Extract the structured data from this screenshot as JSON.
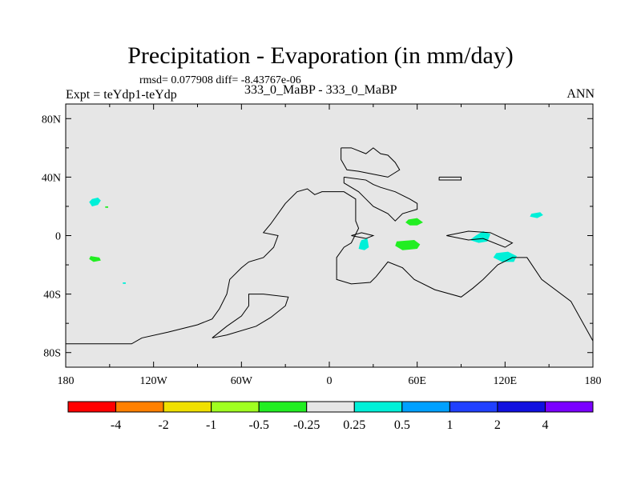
{
  "chart_data": {
    "type": "contour-map",
    "title": "Precipitation - Evaporation (in mm/day)",
    "stats": "rmsd= 0.077908 diff= -8.43767e-06",
    "left_label": "Expt = teYdp1-teYdp",
    "center_label": "333_0_MaBP - 333_0_MaBP",
    "right_label": "ANN",
    "xlim": [
      -180,
      180
    ],
    "ylim": [
      -90,
      90
    ],
    "x_ticks": [
      {
        "value": -180,
        "label": "180"
      },
      {
        "value": -120,
        "label": "120W"
      },
      {
        "value": -60,
        "label": "60W"
      },
      {
        "value": 0,
        "label": "0"
      },
      {
        "value": 60,
        "label": "60E"
      },
      {
        "value": 120,
        "label": "120E"
      },
      {
        "value": 180,
        "label": "180"
      }
    ],
    "y_ticks": [
      {
        "value": 80,
        "label": "80N"
      },
      {
        "value": 40,
        "label": "40N"
      },
      {
        "value": 0,
        "label": "0"
      },
      {
        "value": -40,
        "label": "40S"
      },
      {
        "value": -80,
        "label": "80S"
      }
    ],
    "background_color": "#e6e6e6",
    "coastline": [
      [
        [
          -180,
          -74
        ],
        [
          -135,
          -74
        ],
        [
          -128,
          -70
        ],
        [
          -110,
          -66
        ],
        [
          -90,
          -61
        ],
        [
          -80,
          -57
        ],
        [
          -75,
          -50
        ],
        [
          -70,
          -40
        ],
        [
          -68,
          -30
        ],
        [
          -60,
          -22
        ],
        [
          -55,
          -18
        ],
        [
          -45,
          -15
        ],
        [
          -38,
          -8
        ],
        [
          -35,
          0
        ],
        [
          -45,
          2
        ],
        [
          -40,
          8
        ],
        [
          -30,
          22
        ],
        [
          -22,
          30
        ],
        [
          -15,
          32
        ],
        [
          -10,
          28
        ],
        [
          -5,
          30
        ],
        [
          10,
          30
        ],
        [
          18,
          25
        ],
        [
          18,
          10
        ],
        [
          20,
          5
        ],
        [
          15,
          -5
        ],
        [
          10,
          -8
        ],
        [
          5,
          -15
        ],
        [
          5,
          -30
        ],
        [
          15,
          -33
        ],
        [
          28,
          -32
        ],
        [
          32,
          -28
        ],
        [
          40,
          -18
        ],
        [
          50,
          -22
        ],
        [
          58,
          -30
        ],
        [
          72,
          -37
        ],
        [
          90,
          -42
        ],
        [
          98,
          -36
        ],
        [
          105,
          -30
        ],
        [
          115,
          -20
        ],
        [
          125,
          -15
        ],
        [
          135,
          -15
        ],
        [
          145,
          -30
        ],
        [
          165,
          -45
        ],
        [
          180,
          -72
        ]
      ],
      [
        [
          -80,
          -70
        ],
        [
          -70,
          -68
        ],
        [
          -50,
          -62
        ],
        [
          -40,
          -56
        ],
        [
          -30,
          -48
        ],
        [
          -28,
          -42
        ],
        [
          -45,
          -40
        ],
        [
          -55,
          -40
        ],
        [
          -55,
          -48
        ],
        [
          -60,
          -55
        ],
        [
          -70,
          -62
        ],
        [
          -80,
          -70
        ]
      ],
      [
        [
          10,
          40
        ],
        [
          25,
          38
        ],
        [
          30,
          35
        ],
        [
          35,
          33
        ],
        [
          45,
          30
        ],
        [
          55,
          25
        ],
        [
          60,
          22
        ],
        [
          60,
          18
        ],
        [
          50,
          15
        ],
        [
          45,
          10
        ],
        [
          40,
          15
        ],
        [
          30,
          20
        ],
        [
          25,
          25
        ],
        [
          20,
          30
        ],
        [
          10,
          36
        ],
        [
          10,
          40
        ]
      ],
      [
        [
          8,
          60
        ],
        [
          15,
          60
        ],
        [
          25,
          56
        ],
        [
          30,
          60
        ],
        [
          35,
          56
        ],
        [
          40,
          55
        ],
        [
          45,
          50
        ],
        [
          48,
          45
        ],
        [
          40,
          40
        ],
        [
          30,
          42
        ],
        [
          20,
          44
        ],
        [
          12,
          45
        ],
        [
          8,
          52
        ],
        [
          8,
          60
        ]
      ],
      [
        [
          75,
          40
        ],
        [
          90,
          40
        ],
        [
          90,
          38
        ],
        [
          75,
          38
        ],
        [
          75,
          40
        ]
      ],
      [
        [
          15,
          0
        ],
        [
          25,
          -2
        ],
        [
          30,
          0
        ],
        [
          22,
          2
        ],
        [
          15,
          0
        ]
      ],
      [
        [
          80,
          0
        ],
        [
          95,
          -3
        ],
        [
          105,
          -2
        ],
        [
          120,
          -8
        ],
        [
          125,
          -5
        ],
        [
          110,
          2
        ],
        [
          95,
          3
        ],
        [
          80,
          0
        ]
      ]
    ],
    "shaded_regions": [
      {
        "level": "0.25 to 0.5",
        "color": "#00f0d8",
        "points": [
          [
            -162,
            25
          ],
          [
            -158,
            26
          ],
          [
            -156,
            24
          ],
          [
            -158,
            21
          ],
          [
            -162,
            20
          ],
          [
            -164,
            23
          ]
        ]
      },
      {
        "level": "0.25 to 0.5",
        "color": "#00f0d8",
        "points": [
          [
            100,
            0
          ],
          [
            105,
            3
          ],
          [
            110,
            1
          ],
          [
            108,
            -4
          ],
          [
            102,
            -5
          ],
          [
            96,
            -3
          ]
        ]
      },
      {
        "level": "0.25 to 0.5",
        "color": "#00f0d8",
        "points": [
          [
            114,
            -12
          ],
          [
            122,
            -11
          ],
          [
            128,
            -14
          ],
          [
            126,
            -18
          ],
          [
            118,
            -18
          ],
          [
            112,
            -15
          ]
        ]
      },
      {
        "level": "0.25 to 0.5",
        "color": "#00f0d8",
        "points": [
          [
            138,
            15
          ],
          [
            144,
            16
          ],
          [
            146,
            14
          ],
          [
            142,
            12
          ],
          [
            137,
            13
          ]
        ]
      },
      {
        "level": "0.25 to 0.5",
        "color": "#00f0d8",
        "points": [
          [
            22,
            -3
          ],
          [
            26,
            -2
          ],
          [
            27,
            -8
          ],
          [
            24,
            -10
          ],
          [
            20,
            -9
          ],
          [
            21,
            -5
          ]
        ]
      },
      {
        "level": "0.25 to 0.5",
        "color": "#00f0d8",
        "points": [
          [
            -141,
            -32
          ],
          [
            -139,
            -32
          ],
          [
            -139,
            -33
          ],
          [
            -141,
            -33
          ]
        ]
      },
      {
        "level": "-0.5 to -0.25",
        "color": "#22ee22",
        "points": [
          [
            46,
            -4
          ],
          [
            58,
            -3
          ],
          [
            62,
            -6
          ],
          [
            60,
            -9
          ],
          [
            50,
            -10
          ],
          [
            45,
            -7
          ]
        ]
      },
      {
        "level": "-0.5 to -0.25",
        "color": "#22ee22",
        "points": [
          [
            54,
            11
          ],
          [
            60,
            12
          ],
          [
            64,
            9
          ],
          [
            60,
            7
          ],
          [
            55,
            7
          ],
          [
            52,
            9
          ]
        ]
      },
      {
        "level": "-0.5 to -0.25",
        "color": "#22ee22",
        "points": [
          [
            -163,
            -14
          ],
          [
            -157,
            -15
          ],
          [
            -156,
            -17
          ],
          [
            -161,
            -18
          ],
          [
            -164,
            -16
          ]
        ]
      },
      {
        "level": "-0.5 to -0.25",
        "color": "#22ee22",
        "points": [
          [
            -153,
            20
          ],
          [
            -151,
            20
          ],
          [
            -151,
            19
          ],
          [
            -153,
            19
          ]
        ]
      }
    ],
    "colorbar": {
      "colors": [
        "#ff0000",
        "#ff8000",
        "#f0e000",
        "#a0ff20",
        "#22ee22",
        "#e6e6e6",
        "#00f0d8",
        "#00a0ff",
        "#2040ff",
        "#1010e0",
        "#7a00ff"
      ],
      "labels": [
        "-4",
        "-2",
        "-1",
        "-0.5",
        "-0.25",
        "0.25",
        "0.5",
        "1",
        "2",
        "4"
      ]
    }
  }
}
